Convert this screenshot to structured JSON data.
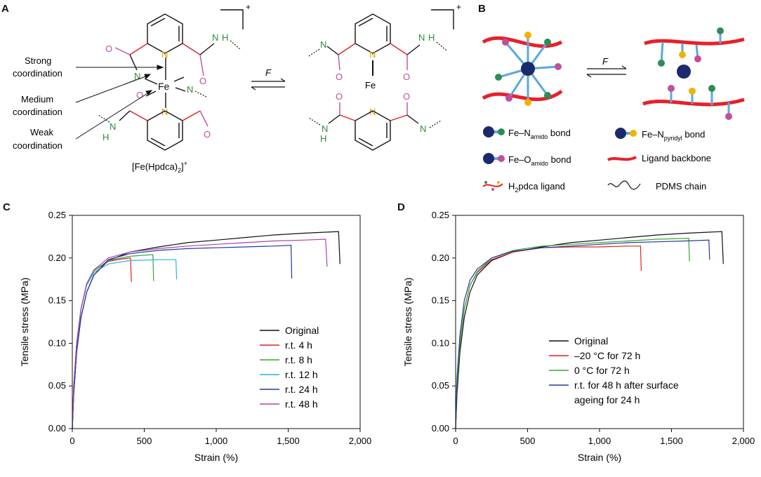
{
  "panels": {
    "a": "A",
    "b": "B",
    "c": "C",
    "d": "D"
  },
  "panel_a": {
    "charge_left": "+",
    "charge_right": "+",
    "annotations": [
      "Strong",
      "coordination",
      "Medium",
      "coordination",
      "Weak",
      "coordination"
    ],
    "complex_label": "[Fe(Hpdca)",
    "complex_sub": "2",
    "complex_close": "]",
    "complex_sup": "+",
    "force": "F",
    "atoms": {
      "n": "N",
      "nh": "N",
      "h": "H",
      "o": "O",
      "fe": "Fe"
    }
  },
  "panel_b": {
    "force": "F",
    "legend": [
      {
        "prefix": "Fe–N",
        "sub": "amido",
        "suffix": " bond",
        "colors": [
          "#1a2a6c",
          "#2e8b57"
        ]
      },
      {
        "prefix": "Fe–N",
        "sub": "pyridyl",
        "suffix": " bond",
        "colors": [
          "#1a2a6c",
          "#f0b400"
        ]
      },
      {
        "prefix": "Fe–O",
        "sub": "amido",
        "suffix": " bond",
        "colors": [
          "#1a2a6c",
          "#c0509a"
        ]
      },
      {
        "prefix": "Ligand backbone",
        "sub": "",
        "suffix": "",
        "colors": [
          "#e8202a"
        ]
      },
      {
        "prefix": "H",
        "sub": "2",
        "suffix": "pdca ligand",
        "colors": [
          "#e8202a"
        ]
      },
      {
        "prefix": "PDMS chain",
        "sub": "",
        "suffix": "",
        "colors": [
          "#111111"
        ]
      }
    ]
  },
  "chart_data": [
    {
      "panel": "C",
      "type": "line",
      "xlabel": "Strain (%)",
      "ylabel": "Tensile stress (MPa)",
      "xlim": [
        0,
        2000
      ],
      "ylim": [
        0,
        0.25
      ],
      "xticks": [
        "0",
        "500",
        "1,000",
        "1,500",
        "2,000"
      ],
      "yticks": [
        "0.00",
        "0.05",
        "0.10",
        "0.15",
        "0.20",
        "0.25"
      ],
      "legend_position": "bottom-right",
      "series": [
        {
          "name": "Original",
          "color": "#111111",
          "points": [
            [
              0,
              0.0
            ],
            [
              10,
              0.04
            ],
            [
              30,
              0.09
            ],
            [
              60,
              0.13
            ],
            [
              100,
              0.16
            ],
            [
              150,
              0.18
            ],
            [
              250,
              0.197
            ],
            [
              400,
              0.207
            ],
            [
              600,
              0.213
            ],
            [
              800,
              0.218
            ],
            [
              1000,
              0.221
            ],
            [
              1200,
              0.224
            ],
            [
              1400,
              0.227
            ],
            [
              1600,
              0.229
            ],
            [
              1850,
              0.231
            ],
            [
              1860,
              0.193
            ]
          ]
        },
        {
          "name": "r.t. 4 h",
          "color": "#e02020",
          "points": [
            [
              0,
              0.0
            ],
            [
              10,
              0.05
            ],
            [
              30,
              0.1
            ],
            [
              60,
              0.14
            ],
            [
              100,
              0.17
            ],
            [
              150,
              0.185
            ],
            [
              250,
              0.196
            ],
            [
              350,
              0.199
            ],
            [
              405,
              0.2
            ],
            [
              410,
              0.172
            ]
          ]
        },
        {
          "name": "r.t. 8 h",
          "color": "#3aa535",
          "points": [
            [
              0,
              0.0
            ],
            [
              10,
              0.05
            ],
            [
              30,
              0.1
            ],
            [
              60,
              0.14
            ],
            [
              100,
              0.17
            ],
            [
              150,
              0.185
            ],
            [
              250,
              0.197
            ],
            [
              400,
              0.202
            ],
            [
              560,
              0.204
            ],
            [
              565,
              0.173
            ]
          ]
        },
        {
          "name": "r.t. 12 h",
          "color": "#20b8d8",
          "points": [
            [
              0,
              0.0
            ],
            [
              10,
              0.05
            ],
            [
              30,
              0.1
            ],
            [
              60,
              0.14
            ],
            [
              100,
              0.168
            ],
            [
              150,
              0.183
            ],
            [
              250,
              0.193
            ],
            [
              400,
              0.197
            ],
            [
              600,
              0.198
            ],
            [
              720,
              0.198
            ],
            [
              725,
              0.175
            ]
          ]
        },
        {
          "name": "r.t. 24 h",
          "color": "#1e3aa0",
          "points": [
            [
              0,
              0.0
            ],
            [
              10,
              0.04
            ],
            [
              30,
              0.09
            ],
            [
              60,
              0.13
            ],
            [
              100,
              0.16
            ],
            [
              150,
              0.18
            ],
            [
              250,
              0.198
            ],
            [
              400,
              0.205
            ],
            [
              600,
              0.209
            ],
            [
              800,
              0.211
            ],
            [
              1000,
              0.212
            ],
            [
              1200,
              0.213
            ],
            [
              1400,
              0.214
            ],
            [
              1520,
              0.215
            ],
            [
              1525,
              0.176
            ]
          ]
        },
        {
          "name": "r.t. 48 h",
          "color": "#b040b0",
          "points": [
            [
              0,
              0.0
            ],
            [
              10,
              0.05
            ],
            [
              30,
              0.1
            ],
            [
              60,
              0.14
            ],
            [
              100,
              0.17
            ],
            [
              150,
              0.186
            ],
            [
              250,
              0.2
            ],
            [
              400,
              0.207
            ],
            [
              600,
              0.211
            ],
            [
              800,
              0.214
            ],
            [
              1000,
              0.216
            ],
            [
              1200,
              0.218
            ],
            [
              1400,
              0.22
            ],
            [
              1600,
              0.221
            ],
            [
              1760,
              0.222
            ],
            [
              1770,
              0.19
            ]
          ]
        }
      ]
    },
    {
      "panel": "D",
      "type": "line",
      "xlabel": "Strain (%)",
      "ylabel": "Tensile stress (MPa)",
      "xlim": [
        0,
        2000
      ],
      "ylim": [
        0,
        0.25
      ],
      "xticks": [
        "0",
        "500",
        "1,000",
        "1,500",
        "2,000"
      ],
      "yticks": [
        "0.00",
        "0.05",
        "0.10",
        "0.15",
        "0.20",
        "0.25"
      ],
      "legend_position": "bottom-right",
      "series": [
        {
          "name": "Original",
          "color": "#111111",
          "points": [
            [
              0,
              0.0
            ],
            [
              10,
              0.04
            ],
            [
              30,
              0.09
            ],
            [
              60,
              0.13
            ],
            [
              100,
              0.16
            ],
            [
              150,
              0.18
            ],
            [
              250,
              0.197
            ],
            [
              400,
              0.207
            ],
            [
              600,
              0.213
            ],
            [
              800,
              0.218
            ],
            [
              1000,
              0.221
            ],
            [
              1200,
              0.224
            ],
            [
              1400,
              0.227
            ],
            [
              1600,
              0.229
            ],
            [
              1850,
              0.231
            ],
            [
              1860,
              0.193
            ]
          ]
        },
        {
          "name": "–20 °C for 72 h",
          "color": "#e02020",
          "points": [
            [
              0,
              0.0
            ],
            [
              10,
              0.05
            ],
            [
              30,
              0.1
            ],
            [
              60,
              0.14
            ],
            [
              100,
              0.168
            ],
            [
              150,
              0.183
            ],
            [
              250,
              0.198
            ],
            [
              400,
              0.207
            ],
            [
              600,
              0.212
            ],
            [
              800,
              0.213
            ],
            [
              1000,
              0.213
            ],
            [
              1200,
              0.214
            ],
            [
              1285,
              0.214
            ],
            [
              1290,
              0.185
            ]
          ]
        },
        {
          "name": "0 °C for 72 h",
          "color": "#3aa535",
          "points": [
            [
              0,
              0.0
            ],
            [
              10,
              0.05
            ],
            [
              30,
              0.1
            ],
            [
              60,
              0.14
            ],
            [
              100,
              0.168
            ],
            [
              150,
              0.184
            ],
            [
              250,
              0.2
            ],
            [
              400,
              0.209
            ],
            [
              600,
              0.214
            ],
            [
              800,
              0.216
            ],
            [
              1000,
              0.218
            ],
            [
              1200,
              0.22
            ],
            [
              1400,
              0.222
            ],
            [
              1620,
              0.223
            ],
            [
              1625,
              0.196
            ]
          ]
        },
        {
          "name": "r.t. for 48 h after surface ageing for 24 h",
          "color": "#1e3aa0",
          "points": [
            [
              0,
              0.0
            ],
            [
              10,
              0.06
            ],
            [
              30,
              0.11
            ],
            [
              60,
              0.15
            ],
            [
              100,
              0.174
            ],
            [
              150,
              0.187
            ],
            [
              250,
              0.2
            ],
            [
              400,
              0.208
            ],
            [
              600,
              0.212
            ],
            [
              800,
              0.214
            ],
            [
              1000,
              0.216
            ],
            [
              1200,
              0.218
            ],
            [
              1400,
              0.219
            ],
            [
              1600,
              0.22
            ],
            [
              1760,
              0.221
            ],
            [
              1765,
              0.198
            ]
          ]
        }
      ]
    }
  ],
  "legend_d_lines": [
    "Original",
    "–20 °C for 72 h",
    "0 °C for 72 h",
    "r.t. for 48 h after surface",
    "ageing for 24 h"
  ]
}
